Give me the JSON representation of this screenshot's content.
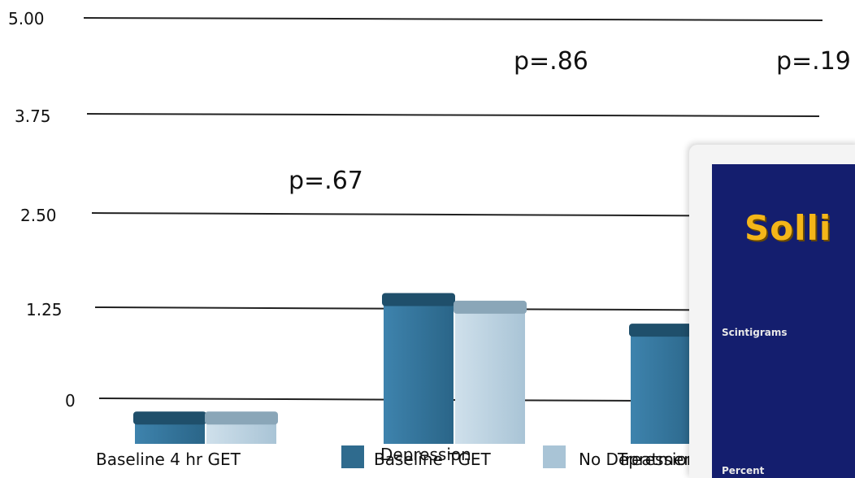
{
  "chart_data": {
    "type": "bar",
    "title": "",
    "xlabel": "",
    "ylabel": "",
    "ylim": [
      -0.6,
      5.0
    ],
    "yticks": [
      "5.00",
      "3.75",
      "2.50",
      "1.25",
      "0"
    ],
    "categories": [
      "Baseline 4 hr GET",
      "Depression",
      "Treatment"
    ],
    "series": [
      {
        "name": "Baseline TGET",
        "values": [
          -0.3,
          1.25,
          0.85
        ],
        "color": "#2f7096"
      },
      {
        "name": "No Depression",
        "values": [
          -0.3,
          1.15,
          null
        ],
        "color": "#b9d2e2"
      }
    ],
    "annotations": [
      "p=.67",
      "p=.86",
      "p=.19"
    ],
    "grid": true,
    "legend_position": "bottom"
  },
  "overlay": {
    "title": "Solli",
    "row1": "Scintigrams",
    "row2": "Percent"
  }
}
